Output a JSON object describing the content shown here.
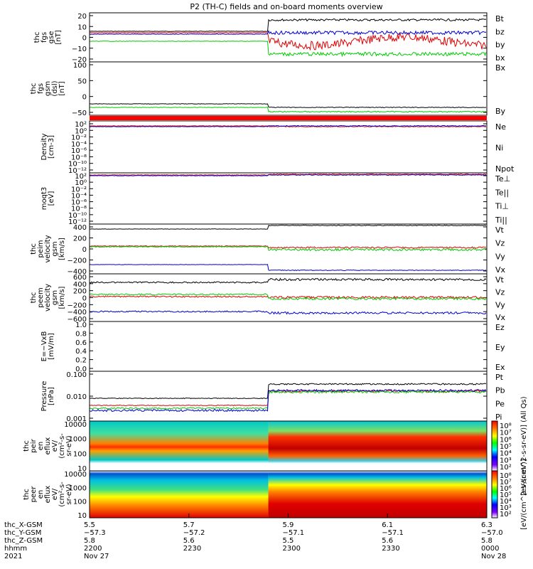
{
  "title": "P2 (TH-C) fields and on-board moments overview",
  "panels": [
    {
      "id": "fgs-gse",
      "ylabel": [
        "thc",
        "fgs",
        "gse",
        "[nT]"
      ],
      "ticks": [
        "20",
        "10",
        "0",
        "−10",
        "−20"
      ],
      "legend": [
        {
          "text": "Bt",
          "color": "#000000"
        },
        {
          "text": "bz",
          "color": "#e00000"
        },
        {
          "text": "by",
          "color": "#00cc00"
        },
        {
          "text": "bx",
          "color": "#0000d0"
        }
      ]
    },
    {
      "id": "fgs-gsm",
      "ylabel": [
        "thc",
        "fgs",
        "gsm",
        "(dsl)",
        "[nT]"
      ],
      "ticks": [
        "100",
        "50",
        "0",
        "−50"
      ],
      "legend": [
        {
          "text": "Bx",
          "color": "#000000"
        },
        {
          "text": "By",
          "color": "#00cc00"
        }
      ]
    },
    {
      "id": "density",
      "ylabel": [
        "Density",
        "[cm-3]"
      ],
      "ticks": [
        "10²",
        "10⁰",
        "10⁻²",
        "10⁻⁴",
        "10⁻⁶",
        "10⁻⁸",
        "10⁻¹⁰",
        "10⁻¹²"
      ],
      "legend": [
        {
          "text": "Ne",
          "color": "#e00000"
        },
        {
          "text": "Ni",
          "color": "#000000"
        },
        {
          "text": "Npot",
          "color": "#0000d0"
        }
      ]
    },
    {
      "id": "temperature",
      "ylabel": [
        "moqt3",
        "[eV]"
      ],
      "ticks": [
        "10²",
        "10⁰",
        "10⁻²",
        "10⁻⁴",
        "10⁻⁶",
        "10⁻⁸",
        "10⁻¹⁰",
        "10⁻¹²"
      ],
      "legend": [
        {
          "text": "Te⊥",
          "color": "#e00000"
        },
        {
          "text": "Te||",
          "color": "#000000"
        },
        {
          "text": "Ti⊥",
          "color": "#0000d0"
        },
        {
          "text": "Ti||",
          "color": "#00cc00"
        }
      ]
    },
    {
      "id": "peim-velocity",
      "ylabel": [
        "thc",
        "peim",
        "velocity",
        "gsm",
        "[km/s]"
      ],
      "ticks": [
        "400",
        "200",
        "0",
        "−200",
        "−400"
      ],
      "legend": [
        {
          "text": "Vt",
          "color": "#000000"
        },
        {
          "text": "Vz",
          "color": "#e00000"
        },
        {
          "text": "Vy",
          "color": "#00cc00"
        },
        {
          "text": "Vx",
          "color": "#0000d0"
        }
      ]
    },
    {
      "id": "peem-velocity",
      "ylabel": [
        "thc",
        "peem",
        "velocity",
        "gsm",
        "[km/s]"
      ],
      "ticks": [
        "600",
        "400",
        "200",
        "0",
        "−200",
        "−400",
        "−600"
      ],
      "legend": [
        {
          "text": "Vt",
          "color": "#000000"
        },
        {
          "text": "Vz",
          "color": "#e00000"
        },
        {
          "text": "Vy",
          "color": "#00cc00"
        },
        {
          "text": "Vx",
          "color": "#0000d0"
        }
      ]
    },
    {
      "id": "efield",
      "ylabel": [
        "E=−VxB",
        "[mV/m]"
      ],
      "ticks": [
        "1.0",
        "0.8",
        "0.6",
        "0.4",
        "0.2",
        "0.0"
      ],
      "legend": [
        {
          "text": "Ez",
          "color": "#e00000"
        },
        {
          "text": "Ey",
          "color": "#00cc00"
        },
        {
          "text": "Ex",
          "color": "#0000d0"
        }
      ]
    },
    {
      "id": "pressure",
      "ylabel": [
        "Pressure",
        "[nPa]"
      ],
      "ticks": [
        "0.100",
        "0.010",
        "0.001"
      ],
      "legend": [
        {
          "text": "Pt",
          "color": "#000000"
        },
        {
          "text": "Pb",
          "color": "#e00000"
        },
        {
          "text": "Pe",
          "color": "#00cc00"
        },
        {
          "text": "Pi",
          "color": "#0000d0"
        }
      ]
    },
    {
      "id": "peir-spectrogram",
      "ylabel": [
        "thc",
        "peir",
        "en",
        "eflux",
        "eV/",
        "(cm²-s-",
        "sr-eV)"
      ],
      "ticks": [
        "10000",
        "1000",
        "100",
        "10"
      ],
      "colorbar_ticks": [
        "10⁸",
        "10⁷",
        "10⁶",
        "10⁵",
        "10⁴",
        "10³",
        "10²"
      ],
      "colorbar_label": "[eV/(cm^2-s-sr-eV)] (All Qs)"
    },
    {
      "id": "peer-spectrogram",
      "ylabel": [
        "thc",
        "peer",
        "en",
        "eflux",
        "eV/",
        "(cm²-s-",
        "sr-eV)"
      ],
      "ticks": [
        "10000",
        "1000",
        "100",
        "10"
      ],
      "colorbar_ticks": [
        "10⁸",
        "10⁷",
        "10⁶",
        "10⁵",
        "10⁴",
        "10³",
        "10²"
      ],
      "colorbar_label": "[eV/(cm^2-s-sr-eV)]"
    }
  ],
  "xaxis": {
    "row_labels": [
      "thc_X-GSM",
      "thc_Y-GSM",
      "thc_Z-GSM",
      "hhmm",
      "2021"
    ],
    "columns": [
      {
        "values": [
          "5.5",
          "−57.3",
          "5.8",
          "2200",
          "Nov 27"
        ]
      },
      {
        "values": [
          "5.7",
          "−57.2",
          "5.6",
          "2230",
          ""
        ]
      },
      {
        "values": [
          "5.9",
          "−57.1",
          "5.5",
          "2300",
          ""
        ]
      },
      {
        "values": [
          "6.1",
          "−57.1",
          "5.6",
          "2330",
          ""
        ]
      },
      {
        "values": [
          "6.3",
          "−57.0",
          "5.8",
          "0000",
          "Nov 28"
        ]
      }
    ]
  },
  "chart_data": {
    "type": "line",
    "title": "P2 (TH-C) fields and on-board moments overview",
    "x": [
      "2200",
      "2230",
      "2300",
      "2330",
      "0000"
    ],
    "x_fraction_of_shock": 0.45,
    "series": [
      {
        "name": "Bt",
        "panel": "fgs-gse",
        "before": 6,
        "after": 16
      },
      {
        "name": "bz",
        "panel": "fgs-gse",
        "before": 4,
        "after": 5
      },
      {
        "name": "by",
        "panel": "fgs-gse",
        "before": -2,
        "after": -14
      },
      {
        "name": "bx",
        "panel": "fgs-gse",
        "before": 4,
        "after": 5
      },
      {
        "name": "Bx",
        "panel": "fgs-gsm",
        "before": -55,
        "after": -62
      },
      {
        "name": "By",
        "panel": "fgs-gsm",
        "before": -60,
        "after": -72
      },
      {
        "name": "Vt",
        "panel": "peim-velocity",
        "before": 330,
        "after": 400
      },
      {
        "name": "Vz",
        "panel": "peim-velocity",
        "before": 10,
        "after": 0
      },
      {
        "name": "Vy",
        "panel": "peim-velocity",
        "before": 0,
        "after": -20
      },
      {
        "name": "Vx",
        "panel": "peim-velocity",
        "before": -330,
        "after": -400
      },
      {
        "name": "Vt",
        "panel": "peem-velocity",
        "before": 400,
        "after": 440
      },
      {
        "name": "Vz",
        "panel": "peem-velocity",
        "before": -20,
        "after": -20
      },
      {
        "name": "Vy",
        "panel": "peem-velocity",
        "before": 0,
        "after": -30
      },
      {
        "name": "Vx",
        "panel": "peem-velocity",
        "before": -350,
        "after": -400
      },
      {
        "name": "Pt",
        "panel": "pressure",
        "before": 0.022,
        "after": 0.16
      },
      {
        "name": "Pb",
        "panel": "pressure",
        "before": 0.008,
        "after": 0.08
      },
      {
        "name": "Pe",
        "panel": "pressure",
        "before": 0.005,
        "after": 0.06
      },
      {
        "name": "Pi",
        "panel": "pressure",
        "before": 0.004,
        "after": 0.07
      }
    ]
  }
}
